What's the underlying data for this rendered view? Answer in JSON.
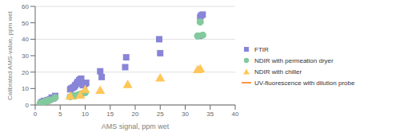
{
  "chart_data": {
    "type": "scatter",
    "xlabel": "AMS signal, ppm wet",
    "ylabel": "Calibrated AMS-value, ppm wet",
    "xlim": [
      0,
      40
    ],
    "ylim": [
      0,
      60
    ],
    "xticks": [
      0,
      5,
      10,
      15,
      20,
      25,
      30,
      35,
      40
    ],
    "yticks": [
      0,
      10,
      20,
      30,
      40,
      50,
      60
    ],
    "grid": "y",
    "legend": "right",
    "series": [
      {
        "name": "FTIR",
        "type": "scatter",
        "marker": "square",
        "x": [
          1.2,
          1.5,
          1.8,
          2.0,
          2.3,
          2.5,
          3.0,
          3.3,
          3.6,
          4.0,
          7.0,
          7.2,
          7.5,
          7.8,
          8.0,
          8.3,
          8.5,
          8.8,
          9.0,
          9.2,
          9.5,
          9.8,
          10.0,
          10.2,
          13.0,
          13.3,
          18.0,
          18.2,
          24.8,
          25.0,
          32.8,
          33.0,
          33.2,
          33.5
        ],
        "y": [
          1.5,
          2.0,
          2.5,
          2.0,
          2.5,
          3.0,
          3.5,
          4.5,
          4.0,
          5.5,
          9.5,
          10.0,
          10.5,
          11.0,
          12.0,
          13.0,
          14.0,
          15.0,
          15.5,
          16.0,
          12.0,
          12.5,
          13.0,
          13.5,
          20.5,
          17.0,
          23.0,
          29.0,
          40.0,
          31.5,
          42.0,
          53.5,
          54.5,
          55.0
        ]
      },
      {
        "name": "NDIR with permeation dryer",
        "type": "scatter",
        "marker": "circle",
        "x": [
          1.0,
          1.5,
          2.0,
          2.5,
          3.0,
          4.0,
          7.0,
          7.5,
          8.0,
          8.5,
          9.0,
          9.5,
          10.0,
          32.5,
          33.0,
          33.5
        ],
        "y": [
          1.0,
          1.5,
          2.0,
          2.5,
          3.0,
          4.5,
          5.0,
          5.5,
          5.5,
          6.0,
          6.5,
          7.0,
          7.5,
          42.0,
          50.5,
          42.5
        ]
      },
      {
        "name": "NDIR with chiller",
        "type": "scatter",
        "marker": "triangle",
        "x": [
          7.0,
          9.0,
          10.0,
          13.0,
          18.5,
          25.0,
          32.5,
          33.0
        ],
        "y": [
          5.0,
          5.5,
          9.0,
          8.5,
          12.0,
          16.0,
          21.0,
          21.5
        ]
      },
      {
        "name": "UV-fluorescence with dilution probe",
        "type": "line",
        "x": [],
        "y": []
      }
    ]
  }
}
